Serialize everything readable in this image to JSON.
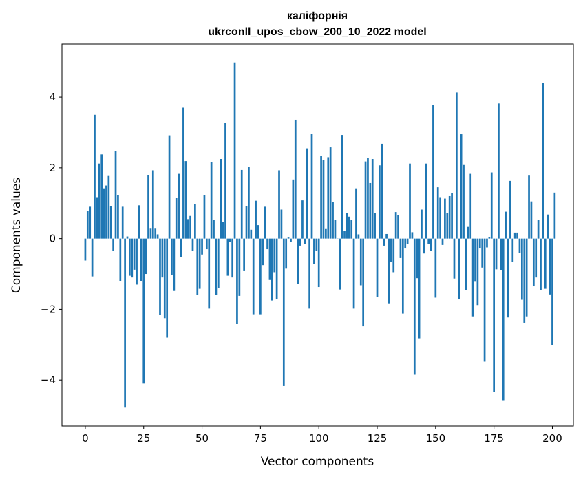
{
  "chart_data": {
    "type": "bar",
    "title_line1": "каліфорнія",
    "title_line2": "ukrconll_upos_cbow_200_10_2022 model",
    "xlabel": "Vector components",
    "ylabel": "Components values",
    "xlim": [
      -10,
      209
    ],
    "ylim": [
      -5.3,
      5.5
    ],
    "xticks": [
      0,
      25,
      50,
      75,
      100,
      125,
      150,
      175,
      200
    ],
    "yticks": [
      -4,
      -2,
      0,
      2,
      4
    ],
    "ytick_labels": [
      "−4",
      "−2",
      "0",
      "2",
      "4"
    ],
    "grid": false,
    "bar_color": "#1f77b4",
    "values": [
      -0.62,
      0.78,
      0.9,
      -1.07,
      3.5,
      1.17,
      2.12,
      2.38,
      1.42,
      1.5,
      1.77,
      0.92,
      -0.35,
      2.48,
      1.22,
      -1.2,
      0.9,
      -4.78,
      0.06,
      -1.05,
      -1.1,
      -0.88,
      -1.3,
      0.94,
      -1.2,
      -4.1,
      -1.0,
      1.8,
      0.28,
      1.93,
      0.28,
      0.12,
      -2.15,
      -1.1,
      -2.25,
      -2.8,
      2.92,
      -1.02,
      -1.48,
      1.15,
      1.83,
      -0.52,
      3.7,
      2.19,
      0.55,
      0.64,
      -0.35,
      0.98,
      -1.6,
      -1.42,
      -0.45,
      1.22,
      -0.3,
      -1.98,
      2.17,
      0.53,
      -1.6,
      -1.4,
      2.25,
      0.47,
      3.28,
      -1.05,
      -0.1,
      -1.1,
      4.98,
      -2.42,
      -1.62,
      1.94,
      -0.92,
      0.92,
      2.03,
      0.25,
      -2.14,
      1.07,
      0.38,
      -2.14,
      -0.75,
      0.9,
      -0.3,
      -1.17,
      -1.75,
      -0.95,
      -1.72,
      1.93,
      0.82,
      -4.17,
      -0.85,
      0.03,
      -0.1,
      1.67,
      3.36,
      -1.28,
      -0.2,
      1.08,
      -0.15,
      2.55,
      -1.98,
      2.97,
      -0.72,
      -0.35,
      -1.37,
      2.33,
      2.22,
      0.27,
      2.3,
      2.58,
      1.03,
      0.53,
      0.0,
      -1.44,
      2.93,
      0.22,
      0.72,
      0.62,
      0.52,
      -1.98,
      1.42,
      0.12,
      -1.32,
      -2.48,
      2.18,
      2.28,
      1.57,
      2.25,
      0.72,
      -1.65,
      2.07,
      2.68,
      -0.2,
      0.13,
      -1.83,
      -0.65,
      -0.95,
      0.75,
      0.66,
      -0.55,
      -2.12,
      -0.28,
      -0.15,
      2.12,
      0.18,
      -3.85,
      -1.12,
      -2.82,
      0.82,
      -0.42,
      2.12,
      -0.15,
      -0.35,
      3.78,
      -1.67,
      1.45,
      1.17,
      -0.18,
      1.13,
      0.72,
      1.2,
      1.28,
      -1.13,
      4.13,
      -1.72,
      2.95,
      2.08,
      -1.45,
      0.33,
      1.83,
      -2.2,
      -1.22,
      -1.88,
      -0.28,
      -0.82,
      -3.48,
      -0.25,
      0.05,
      1.87,
      -4.33,
      -0.87,
      3.82,
      -0.9,
      -4.57,
      0.76,
      -2.23,
      1.63,
      -0.65,
      0.17,
      0.17,
      -0.4,
      -1.73,
      -2.38,
      -2.2,
      1.78,
      1.05,
      -1.35,
      -1.1,
      0.52,
      -1.45,
      4.4,
      -1.42,
      0.68,
      -1.58,
      -3.02,
      1.3
    ]
  }
}
